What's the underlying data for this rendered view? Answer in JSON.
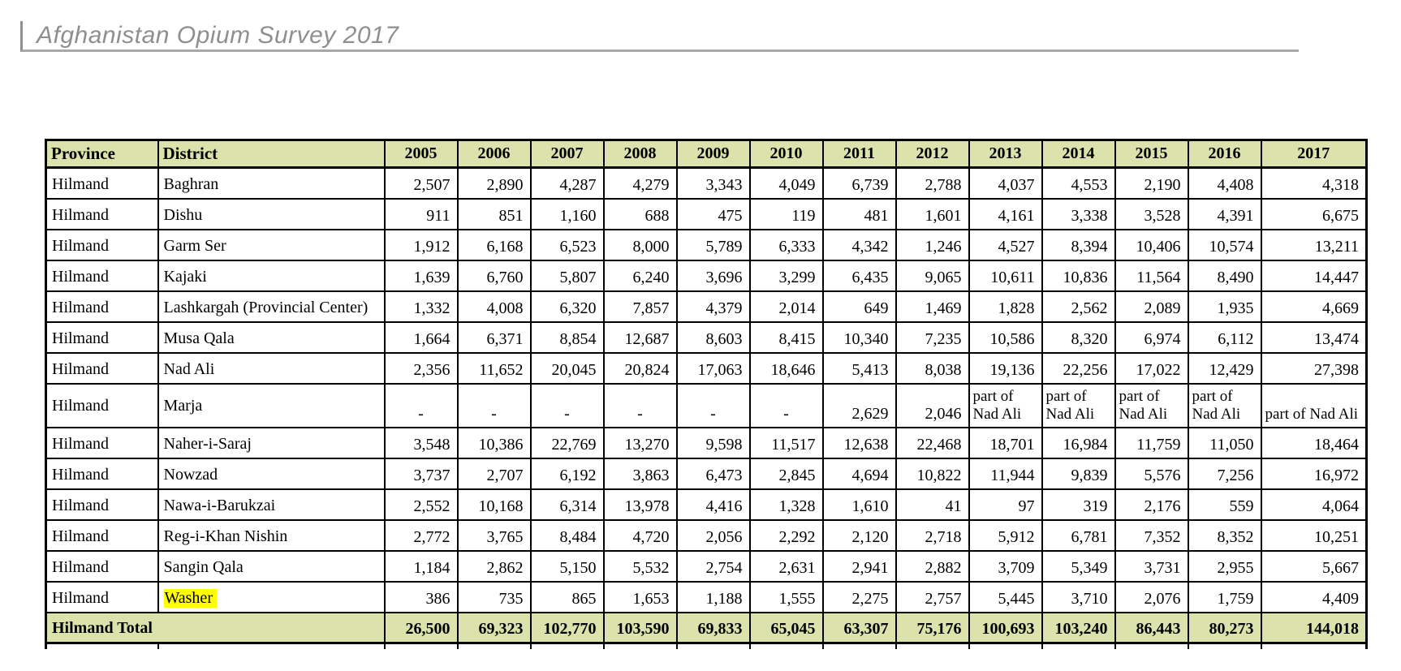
{
  "header": {
    "title": "Afghanistan Opium Survey 2017"
  },
  "colors": {
    "table_header_bg": "#dbe2ab",
    "highlight_yellow": "#ffff00",
    "title_gray": "#8f8f8f"
  },
  "table": {
    "columns": [
      "Province",
      "District",
      "2005",
      "2006",
      "2007",
      "2008",
      "2009",
      "2010",
      "2011",
      "2012",
      "2013",
      "2014",
      "2015",
      "2016",
      "2017"
    ],
    "province": "Hilmand",
    "rows": [
      {
        "district": "Baghran",
        "highlight": false,
        "tall": false,
        "values": [
          "2,507",
          "2,890",
          "4,287",
          "4,279",
          "3,343",
          "4,049",
          "6,739",
          "2,788",
          "4,037",
          "4,553",
          "2,190",
          "4,408",
          "4,318"
        ]
      },
      {
        "district": "Dishu",
        "highlight": false,
        "tall": false,
        "values": [
          "911",
          "851",
          "1,160",
          "688",
          "475",
          "119",
          "481",
          "1,601",
          "4,161",
          "3,338",
          "3,528",
          "4,391",
          "6,675"
        ]
      },
      {
        "district": "Garm Ser",
        "highlight": false,
        "tall": false,
        "values": [
          "1,912",
          "6,168",
          "6,523",
          "8,000",
          "5,789",
          "6,333",
          "4,342",
          "1,246",
          "4,527",
          "8,394",
          "10,406",
          "10,574",
          "13,211"
        ]
      },
      {
        "district": "Kajaki",
        "highlight": false,
        "tall": false,
        "values": [
          "1,639",
          "6,760",
          "5,807",
          "6,240",
          "3,696",
          "3,299",
          "6,435",
          "9,065",
          "10,611",
          "10,836",
          "11,564",
          "8,490",
          "14,447"
        ]
      },
      {
        "district": "Lashkargah (Provincial Center)",
        "highlight": false,
        "tall": false,
        "values": [
          "1,332",
          "4,008",
          "6,320",
          "7,857",
          "4,379",
          "2,014",
          "649",
          "1,469",
          "1,828",
          "2,562",
          "2,089",
          "1,935",
          "4,669"
        ]
      },
      {
        "district": "Musa Qala",
        "highlight": false,
        "tall": false,
        "values": [
          "1,664",
          "6,371",
          "8,854",
          "12,687",
          "8,603",
          "8,415",
          "10,340",
          "7,235",
          "10,586",
          "8,320",
          "6,974",
          "6,112",
          "13,474"
        ]
      },
      {
        "district": "Nad Ali",
        "highlight": false,
        "tall": false,
        "values": [
          "2,356",
          "11,652",
          "20,045",
          "20,824",
          "17,063",
          "18,646",
          "5,413",
          "8,038",
          "19,136",
          "22,256",
          "17,022",
          "12,429",
          "27,398"
        ]
      },
      {
        "district": "Marja",
        "highlight": false,
        "tall": true,
        "values": [
          "-",
          "-",
          "-",
          "-",
          "-",
          "-",
          "2,629",
          "2,046",
          "part of Nad Ali",
          "part of Nad Ali",
          "part of Nad Ali",
          "part of Nad Ali",
          "part of Nad Ali"
        ]
      },
      {
        "district": "Naher-i-Saraj",
        "highlight": false,
        "tall": false,
        "values": [
          "3,548",
          "10,386",
          "22,769",
          "13,270",
          "9,598",
          "11,517",
          "12,638",
          "22,468",
          "18,701",
          "16,984",
          "11,759",
          "11,050",
          "18,464"
        ]
      },
      {
        "district": "Nowzad",
        "highlight": false,
        "tall": false,
        "values": [
          "3,737",
          "2,707",
          "6,192",
          "3,863",
          "6,473",
          "2,845",
          "4,694",
          "10,822",
          "11,944",
          "9,839",
          "5,576",
          "7,256",
          "16,972"
        ]
      },
      {
        "district": "Nawa-i-Barukzai",
        "highlight": false,
        "tall": false,
        "values": [
          "2,552",
          "10,168",
          "6,314",
          "13,978",
          "4,416",
          "1,328",
          "1,610",
          "41",
          "97",
          "319",
          "2,176",
          "559",
          "4,064"
        ]
      },
      {
        "district": "Reg-i-Khan Nishin",
        "highlight": false,
        "tall": false,
        "values": [
          "2,772",
          "3,765",
          "8,484",
          "4,720",
          "2,056",
          "2,292",
          "2,120",
          "2,718",
          "5,912",
          "6,781",
          "7,352",
          "8,352",
          "10,251"
        ]
      },
      {
        "district": "Sangin Qala",
        "highlight": false,
        "tall": false,
        "values": [
          "1,184",
          "2,862",
          "5,150",
          "5,532",
          "2,754",
          "2,631",
          "2,941",
          "2,882",
          "3,709",
          "5,349",
          "3,731",
          "2,955",
          "5,667"
        ]
      },
      {
        "district": "Washer",
        "highlight": true,
        "tall": false,
        "values": [
          "386",
          "735",
          "865",
          "1,653",
          "1,188",
          "1,555",
          "2,275",
          "2,757",
          "5,445",
          "3,710",
          "2,076",
          "1,759",
          "4,409"
        ]
      }
    ],
    "total_row": {
      "label": "Hilmand Total",
      "values": [
        "26,500",
        "69,323",
        "102,770",
        "103,590",
        "69,833",
        "65,045",
        "63,307",
        "75,176",
        "100,693",
        "103,240",
        "86,443",
        "80,273",
        "144,018"
      ]
    }
  }
}
